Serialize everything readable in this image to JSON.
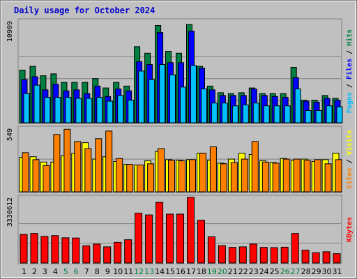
{
  "chart_data": {
    "type": "bar",
    "title": "Daily usage for October 2024",
    "days": [
      1,
      2,
      3,
      4,
      5,
      6,
      7,
      8,
      9,
      10,
      11,
      12,
      13,
      14,
      15,
      16,
      17,
      18,
      19,
      20,
      21,
      22,
      23,
      24,
      25,
      26,
      27,
      28,
      29,
      30,
      31
    ],
    "weekend_days": [
      5,
      6,
      12,
      13,
      19,
      20,
      26,
      27
    ],
    "colors": {
      "title": "#0000cc",
      "hits": "#008040",
      "files": "#0000ff",
      "pages": "#00c0ff",
      "visits": "#ffff00",
      "sites": "#ff8000",
      "kbytes": "#ff0000",
      "plot_bg": "#c0c0c0",
      "weekend_label": "#008040",
      "weekday_label": "#000000"
    },
    "panels": [
      {
        "id": "traffic",
        "max_label": "10909",
        "ylim": [
          0,
          10909
        ],
        "axis_label": [
          {
            "text": "Pages",
            "color": "#00c0ff"
          },
          {
            "text": " / ",
            "color": "#000000"
          },
          {
            "text": "Files",
            "color": "#0000ff"
          },
          {
            "text": " / ",
            "color": "#000000"
          },
          {
            "text": "Hits",
            "color": "#008040"
          }
        ],
        "series": [
          {
            "name": "Hits",
            "color": "#008040",
            "values": [
              5600,
              6000,
              5000,
              5200,
              4300,
              4300,
              4300,
              4700,
              3700,
              4300,
              3900,
              8100,
              7400,
              10350,
              7600,
              7400,
              10450,
              6000,
              3900,
              3200,
              3100,
              3200,
              3700,
              3100,
              3100,
              3100,
              5900,
              2400,
              2400,
              2900,
              2600
            ]
          },
          {
            "name": "Files",
            "color": "#0000ff",
            "values": [
              4600,
              4900,
              3500,
              4100,
              3400,
              3500,
              3100,
              3900,
              2800,
              3600,
              3400,
              6500,
              6200,
              9600,
              6400,
              6400,
              9750,
              5800,
              3500,
              2900,
              2900,
              2900,
              3600,
              2900,
              2800,
              2700,
              4800,
              2300,
              2200,
              2600,
              2400
            ]
          },
          {
            "name": "Pages",
            "color": "#00c0ff",
            "values": [
              3100,
              4000,
              2700,
              2700,
              2700,
              2600,
              2600,
              2700,
              2300,
              2900,
              2400,
              5500,
              4600,
              6200,
              5100,
              3800,
              6100,
              3600,
              2100,
              2100,
              1800,
              1900,
              2100,
              1800,
              1800,
              1800,
              3600,
              1300,
              1300,
              1800,
              1700
            ]
          }
        ]
      },
      {
        "id": "visitors",
        "max_label": "549",
        "ylim": [
          0,
          549
        ],
        "axis_label": [
          {
            "text": "Sites",
            "color": "#ff8000"
          },
          {
            "text": " / ",
            "color": "#000000"
          },
          {
            "text": "Visits",
            "color": "#ffff00"
          }
        ],
        "series": [
          {
            "name": "Visits",
            "color": "#ffff00",
            "values": [
              295,
              300,
              255,
              255,
              310,
              330,
              420,
              280,
              300,
              260,
              235,
              230,
              265,
              345,
              275,
              270,
              275,
              330,
              270,
              245,
              280,
              330,
              320,
              265,
              250,
              285,
              270,
              280,
              260,
              275,
              330
            ]
          },
          {
            "name": "Sites",
            "color": "#ff8000",
            "values": [
              335,
              275,
              225,
              490,
              535,
              430,
              370,
              455,
              520,
              285,
              235,
              230,
              240,
              370,
              270,
              265,
              275,
              330,
              385,
              240,
              250,
              280,
              430,
              255,
              245,
              280,
              280,
              270,
              275,
              240,
              275
            ]
          }
        ]
      },
      {
        "id": "kbytes",
        "max_label": "3330612",
        "ylim": [
          0,
          3330612
        ],
        "axis_label": [
          {
            "text": "KBytes",
            "color": "#ff0000"
          }
        ],
        "series": [
          {
            "name": "KBytes",
            "color": "#ff0000",
            "values": [
              1450000,
              1500000,
              1350000,
              1390000,
              1280000,
              1270000,
              870000,
              960000,
              820000,
              1050000,
              1180000,
              2530000,
              2440000,
              3080000,
              2480000,
              2480000,
              3330612,
              2170000,
              1330000,
              880000,
              790000,
              820000,
              960000,
              790000,
              780000,
              800000,
              1500000,
              650000,
              520000,
              570000,
              470000
            ]
          }
        ]
      }
    ]
  }
}
